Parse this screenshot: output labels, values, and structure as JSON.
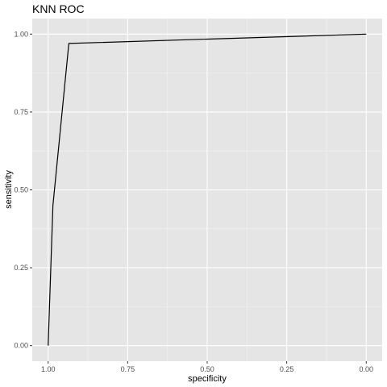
{
  "chart_data": {
    "type": "line",
    "title": "KNN ROC",
    "xlabel": "specificity",
    "ylabel": "sensitivity",
    "x_reversed": true,
    "xlim": [
      1.0,
      0.0
    ],
    "ylim": [
      0.0,
      1.0
    ],
    "x_ticks": [
      {
        "value": 1.0,
        "label": "1.00"
      },
      {
        "value": 0.75,
        "label": "0.75"
      },
      {
        "value": 0.5,
        "label": "0.50"
      },
      {
        "value": 0.25,
        "label": "0.25"
      },
      {
        "value": 0.0,
        "label": "0.00"
      }
    ],
    "y_ticks": [
      {
        "value": 0.0,
        "label": "0.00"
      },
      {
        "value": 0.25,
        "label": "0.25"
      },
      {
        "value": 0.5,
        "label": "0.50"
      },
      {
        "value": 0.75,
        "label": "0.75"
      },
      {
        "value": 1.0,
        "label": "1.00"
      }
    ],
    "grid": true,
    "series": [
      {
        "x": [
          1.0,
          0.985,
          0.935,
          0.0
        ],
        "y": [
          0.0,
          0.45,
          0.97,
          1.0
        ]
      }
    ],
    "colors": {
      "panel_background": "#e5e5e5",
      "grid_major": "#ffffff",
      "grid_minor": "#f2f2f2",
      "line": "#000000"
    }
  }
}
